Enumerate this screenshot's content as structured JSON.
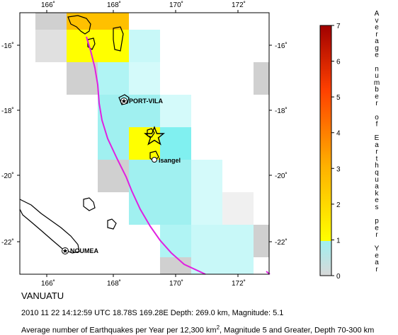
{
  "map": {
    "region_name": "VANUATU",
    "event_line": "2010 11 22 14:12:59 UTC 18.78S 169.28E Depth: 269.0 km, Magnitude: 5.1",
    "average_line_prefix": "Average number of Earthquakes per Year per 12,300 km",
    "average_line_sup": "2",
    "average_line_suffix": ", Magnitude 5 and Greater, Depth 70-300 km",
    "lon_ticks": [
      "166˚",
      "168˚",
      "170˚",
      "172˚"
    ],
    "lat_ticks": [
      "-16˚",
      "-18˚",
      "-20˚",
      "-22˚"
    ],
    "places": {
      "port_vila": "PORT-VILA",
      "isangel": "Isangel",
      "noumea": "NOUMEA"
    },
    "colors": {
      "trench": "#e020e0",
      "cell_cyan": "#a0f0f0",
      "cell_yellow": "#ffff00",
      "cell_orange": "#ffc000",
      "cell_gray": "#d0d0d0"
    }
  },
  "colorbar": {
    "title_letters": [
      "A",
      "v",
      "e",
      "r",
      "a",
      "g",
      "e",
      "",
      "n",
      "u",
      "m",
      "b",
      "e",
      "r",
      "",
      "o",
      "f",
      "",
      "E",
      "a",
      "r",
      "t",
      "h",
      "q",
      "u",
      "a",
      "k",
      "e",
      "s",
      "",
      "p",
      "e",
      "r",
      "",
      "Y",
      "e",
      "a",
      "r"
    ],
    "ticks": [
      "0",
      "1",
      "2",
      "3",
      "4",
      "5",
      "6",
      "7"
    ]
  }
}
